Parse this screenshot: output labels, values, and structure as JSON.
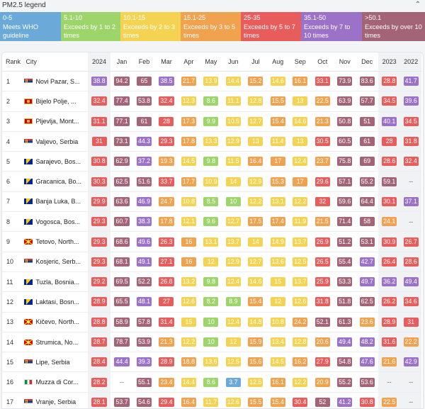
{
  "legend": {
    "title": "PM2.5 legend",
    "items": [
      {
        "range": "0-5",
        "desc": "Meets WHO guideline",
        "color": "#6aa9d8",
        "width": 86
      },
      {
        "range": "5.1-10",
        "desc": "Exceeds by 1 to 2 times",
        "color": "#9ed56a",
        "width": 84
      },
      {
        "range": "10.1-15",
        "desc": "Exceeds by 2 to 3 times",
        "color": "#f5d352",
        "width": 85
      },
      {
        "range": "15.1-25",
        "desc": "Exceeds by 3 to 5 times",
        "color": "#f0a24e",
        "width": 85
      },
      {
        "range": "25-35",
        "desc": "Exceeds by 5 to 7 times",
        "color": "#e85c5c",
        "width": 85
      },
      {
        "range": "35.1-50",
        "desc": "Exceeds by 7 to 10 times",
        "color": "#9b72c8",
        "width": 86
      },
      {
        "range": ">50.1",
        "desc": "Exceeds by over 10 times",
        "color": "#a36477",
        "width": 89
      }
    ]
  },
  "table": {
    "headers": [
      "Rank",
      "City",
      "2024",
      "Jan",
      "Feb",
      "Mar",
      "Apr",
      "May",
      "Jun",
      "Jul",
      "Aug",
      "Sep",
      "Oct",
      "Nov",
      "Dec",
      "2023",
      "2022"
    ],
    "rows": [
      {
        "rank": "1",
        "flag": "RS",
        "city": "Novi Pazar, S...",
        "values": [
          "38.8",
          "94.2",
          "65",
          "38.5",
          "21.7",
          "13.9",
          "14.4",
          "15.2",
          "14.6",
          "16.1",
          "33.1",
          "73.9",
          "83.6",
          "28.8",
          "41.7"
        ]
      },
      {
        "rank": "2",
        "flag": "ME",
        "city": "Bijelo Polje, ...",
        "values": [
          "32.4",
          "77.4",
          "53.8",
          "32.4",
          "12.3",
          "8.6",
          "11.1",
          "12.8",
          "15.5",
          "13",
          "22.5",
          "63.9",
          "57.7",
          "34.5",
          "39.6"
        ]
      },
      {
        "rank": "3",
        "flag": "ME",
        "city": "Pljevlja, Mont...",
        "values": [
          "31.1",
          "77.1",
          "61",
          "28",
          "17.3",
          "9.9",
          "10.5",
          "12.7",
          "15.4",
          "14.6",
          "21.3",
          "50.8",
          "51",
          "40.1",
          "34.5"
        ]
      },
      {
        "rank": "4",
        "flag": "RS",
        "city": "Valjevo, Serbia",
        "values": [
          "31",
          "73.1",
          "44.3",
          "29.3",
          "17.8",
          "13.3",
          "12.9",
          "13",
          "11.4",
          "13",
          "30.5",
          "60.5",
          "61",
          "28",
          "31.8"
        ]
      },
      {
        "rank": "5",
        "flag": "BA",
        "city": "Sarajevo, Bos...",
        "values": [
          "30.8",
          "62.9",
          "37.2",
          "19.3",
          "14.5",
          "9.8",
          "11.5",
          "16.4",
          "17",
          "12.4",
          "23.7",
          "75.8",
          "69",
          "28.6",
          "32.4"
        ]
      },
      {
        "rank": "6",
        "flag": "BA",
        "city": "Gracanica, Bo...",
        "values": [
          "30.3",
          "62.5",
          "51.6",
          "33.7",
          "17.7",
          "10.9",
          "14",
          "12.9",
          "15.3",
          "17",
          "29.6",
          "57.1",
          "55.2",
          "59.1",
          "--"
        ]
      },
      {
        "rank": "7",
        "flag": "BA",
        "city": "Banja Luka, B...",
        "values": [
          "29.9",
          "63.6",
          "46.9",
          "24.7",
          "10.8",
          "8.5",
          "10",
          "12.2",
          "13.1",
          "12.2",
          "32",
          "59.6",
          "64.4",
          "30.1",
          "37.1"
        ]
      },
      {
        "rank": "8",
        "flag": "BA",
        "city": "Vogosca, Bos...",
        "values": [
          "29.3",
          "60.7",
          "38.3",
          "17.8",
          "12.1",
          "9.6",
          "12.7",
          "17.5",
          "17.4",
          "11.9",
          "21.5",
          "71.4",
          "58",
          "24.1",
          "--"
        ]
      },
      {
        "rank": "9",
        "flag": "MK",
        "city": "Tetovo, North...",
        "values": [
          "29.3",
          "68.6",
          "49.6",
          "26.3",
          "16",
          "13.1",
          "13.7",
          "14",
          "14.9",
          "13.7",
          "26.9",
          "51.2",
          "53.1",
          "30.9",
          "26.7"
        ]
      },
      {
        "rank": "10",
        "flag": "RS",
        "city": "Kosjeric, Serb...",
        "values": [
          "29.3",
          "68.1",
          "49.1",
          "27.1",
          "16",
          "12",
          "12.9",
          "12.7",
          "13.6",
          "12.5",
          "26.5",
          "55.4",
          "42.7",
          "26.4",
          "28.6"
        ]
      },
      {
        "rank": "11",
        "flag": "BA",
        "city": "Tuzla, Bosnia...",
        "values": [
          "29.2",
          "69.5",
          "52.2",
          "26.8",
          "13.2",
          "9.8",
          "12.4",
          "14.6",
          "15",
          "13.7",
          "25.9",
          "53.3",
          "49.7",
          "36.2",
          "49.4"
        ]
      },
      {
        "rank": "12",
        "flag": "BA",
        "city": "Laktasi, Bosn...",
        "values": [
          "28.9",
          "65.5",
          "48.1",
          "27",
          "12.6",
          "8.2",
          "8.9",
          "15.4",
          "12",
          "12.6",
          "31.8",
          "51.8",
          "62.5",
          "26.2",
          "34.6"
        ]
      },
      {
        "rank": "13",
        "flag": "MK",
        "city": "Kičevo, North...",
        "values": [
          "28.8",
          "58.9",
          "57.8",
          "31.4",
          "15",
          "10",
          "12.4",
          "14.8",
          "10.8",
          "24.2",
          "52.1",
          "61.3",
          "23.6",
          "28.9",
          "31"
        ]
      },
      {
        "rank": "14",
        "flag": "MK",
        "city": "Strumica, No...",
        "values": [
          "28.7",
          "78.7",
          "53.9",
          "21.3",
          "12.2",
          "10",
          "12",
          "15.9",
          "13.4",
          "12.8",
          "20.6",
          "49.4",
          "48.2",
          "31.6",
          "22.2"
        ]
      },
      {
        "rank": "15",
        "flag": "RS",
        "city": "Lipe, Serbia",
        "values": [
          "28.4",
          "44.4",
          "39.3",
          "28.9",
          "18.8",
          "13.6",
          "12.5",
          "15.6",
          "14.5",
          "16.2",
          "27.9",
          "54.8",
          "47.6",
          "21.6",
          "42.9"
        ]
      },
      {
        "rank": "16",
        "flag": "IT",
        "city": "Muzza di Cor...",
        "values": [
          "28.2",
          "--",
          "55.1",
          "23.4",
          "14.4",
          "8.6",
          "3.7",
          "12.5",
          "16.1",
          "12.2",
          "20.9",
          "55.2",
          "53.6",
          "--",
          "--"
        ]
      },
      {
        "rank": "17",
        "flag": "RS",
        "city": "Vranje, Serbia",
        "values": [
          "28.1",
          "53.7",
          "54.6",
          "29.4",
          "16.4",
          "11.7",
          "12.6",
          "15.5",
          "15.4",
          "30.4",
          "52",
          "41.2",
          "30.8",
          "22.5",
          "--"
        ]
      }
    ]
  }
}
